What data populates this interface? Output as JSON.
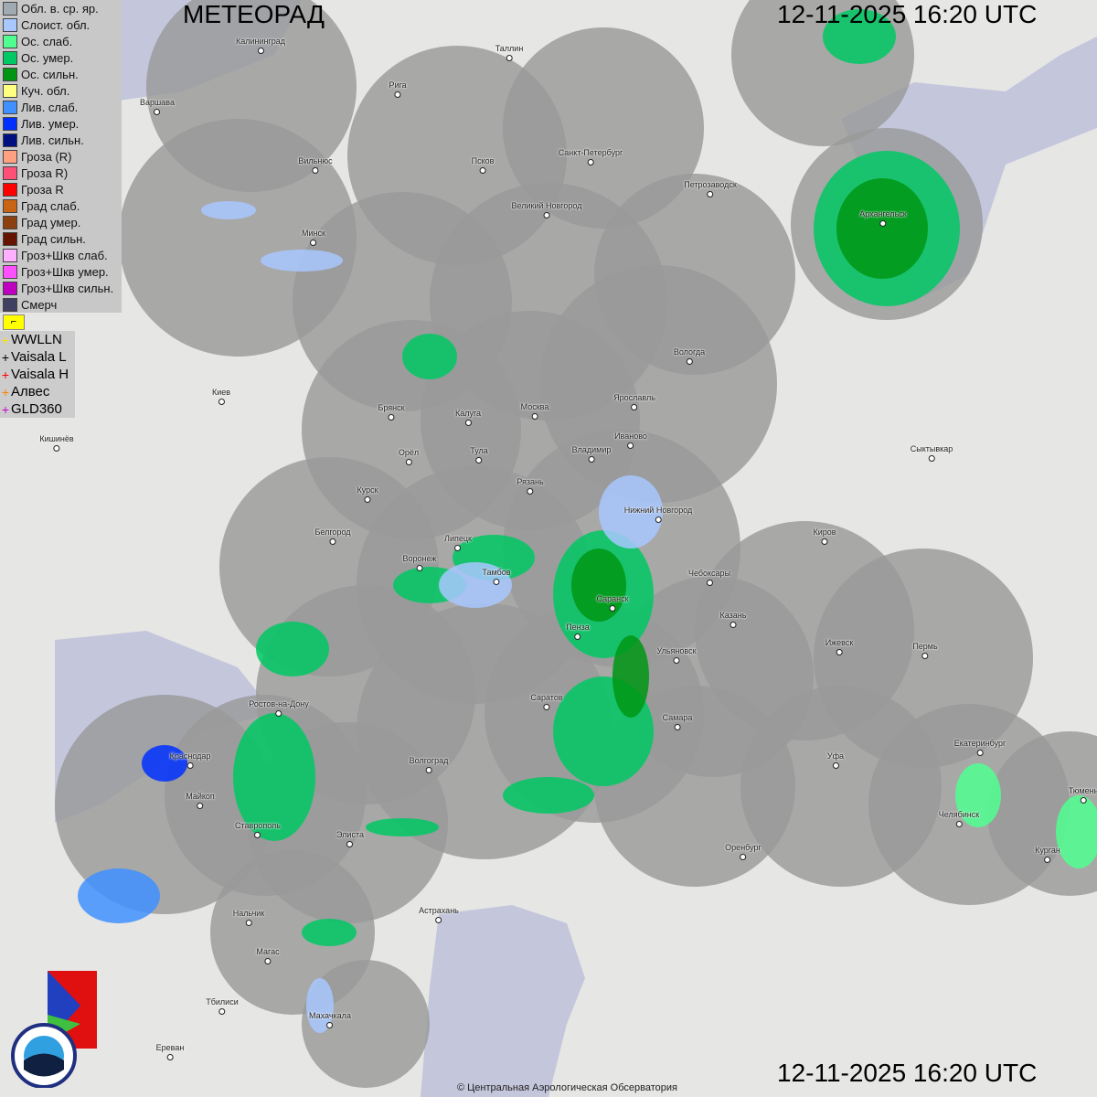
{
  "header": {
    "title": "МЕТЕОРАД",
    "datetime": "12-11-2025  16:20 UTC"
  },
  "footer": {
    "datetime": "12-11-2025  16:20 UTC",
    "copyright": "© Центральная Аэрологическая Обсерватория",
    "logos": [
      "РОСГИДРОМЕТ",
      "ROSHYDROMET",
      "ЦАО 1941"
    ]
  },
  "legend": [
    {
      "label": "Обл. в. ср. яр.",
      "color": "#a0aab0"
    },
    {
      "label": "Слоист. обл.",
      "color": "#a8c8ff"
    },
    {
      "label": "Ос. слаб.",
      "color": "#50ff90"
    },
    {
      "label": "Ос. умер.",
      "color": "#00c864"
    },
    {
      "label": "Ос. сильн.",
      "color": "#009614"
    },
    {
      "label": "Куч. обл.",
      "color": "#ffff80"
    },
    {
      "label": "Лив. слаб.",
      "color": "#4090ff"
    },
    {
      "label": "Лив. умер.",
      "color": "#0030ff"
    },
    {
      "label": "Лив. сильн.",
      "color": "#001080"
    },
    {
      "label": "Гроза (R)",
      "color": "#ffa080"
    },
    {
      "label": "Гроза R)",
      "color": "#ff5078"
    },
    {
      "label": "Гроза R",
      "color": "#ff0000"
    },
    {
      "label": "Град слаб.",
      "color": "#c86414"
    },
    {
      "label": "Град умер.",
      "color": "#8c4010"
    },
    {
      "label": "Град сильн.",
      "color": "#641400"
    },
    {
      "label": "Гроз+Шкв слаб.",
      "color": "#ffb0ff"
    },
    {
      "label": "Гроз+Шкв умер.",
      "color": "#ff50ff"
    },
    {
      "label": "Гроз+Шкв сильн.",
      "color": "#c000c0"
    },
    {
      "label": "Смерч",
      "color": "#404060"
    }
  ],
  "lightning_toggle_icon": "lightning-flag-icon",
  "lightning_sources": [
    {
      "label": "WWLLN",
      "color": "#ffe000"
    },
    {
      "label": "Vaisala L",
      "color": "#000000"
    },
    {
      "label": "Vaisala H",
      "color": "#ff0000"
    },
    {
      "label": "Алвес",
      "color": "#ff8000"
    },
    {
      "label": "GLD360",
      "color": "#d000d0"
    }
  ],
  "cities": [
    "Калининград",
    "Таллин",
    "Рига",
    "Варшава",
    "Санкт-Петербург",
    "Псков",
    "Вильнюс",
    "Петрозаводск",
    "Архангельск",
    "Великий Новгород",
    "Минск",
    "Вологда",
    "Киев",
    "Брянск",
    "Калуга",
    "Москва",
    "Ярославль",
    "Иваново",
    "Кишинёв",
    "Орёл",
    "Тула",
    "Владимир",
    "Сыктывкар",
    "Рязань",
    "Курск",
    "Нижний Новгород",
    "Киров",
    "Белгород",
    "Липецк",
    "Воронеж",
    "Тамбов",
    "Чебоксары",
    "Саранск",
    "Казань",
    "Пенза",
    "Ижевск",
    "Пермь",
    "Ульяновск",
    "Саратов",
    "Ростов-на-Дону",
    "Самара",
    "Екатеринбург",
    "Краснодар",
    "Волгоград",
    "Уфа",
    "Майкоп",
    "Челябинск",
    "Тюмень",
    "Ставрополь",
    "Элиста",
    "Оренбург",
    "Курган",
    "Нальчик",
    "Астрахань",
    "Магас",
    "Тбилиси",
    "Махачкала",
    "Ереван"
  ]
}
